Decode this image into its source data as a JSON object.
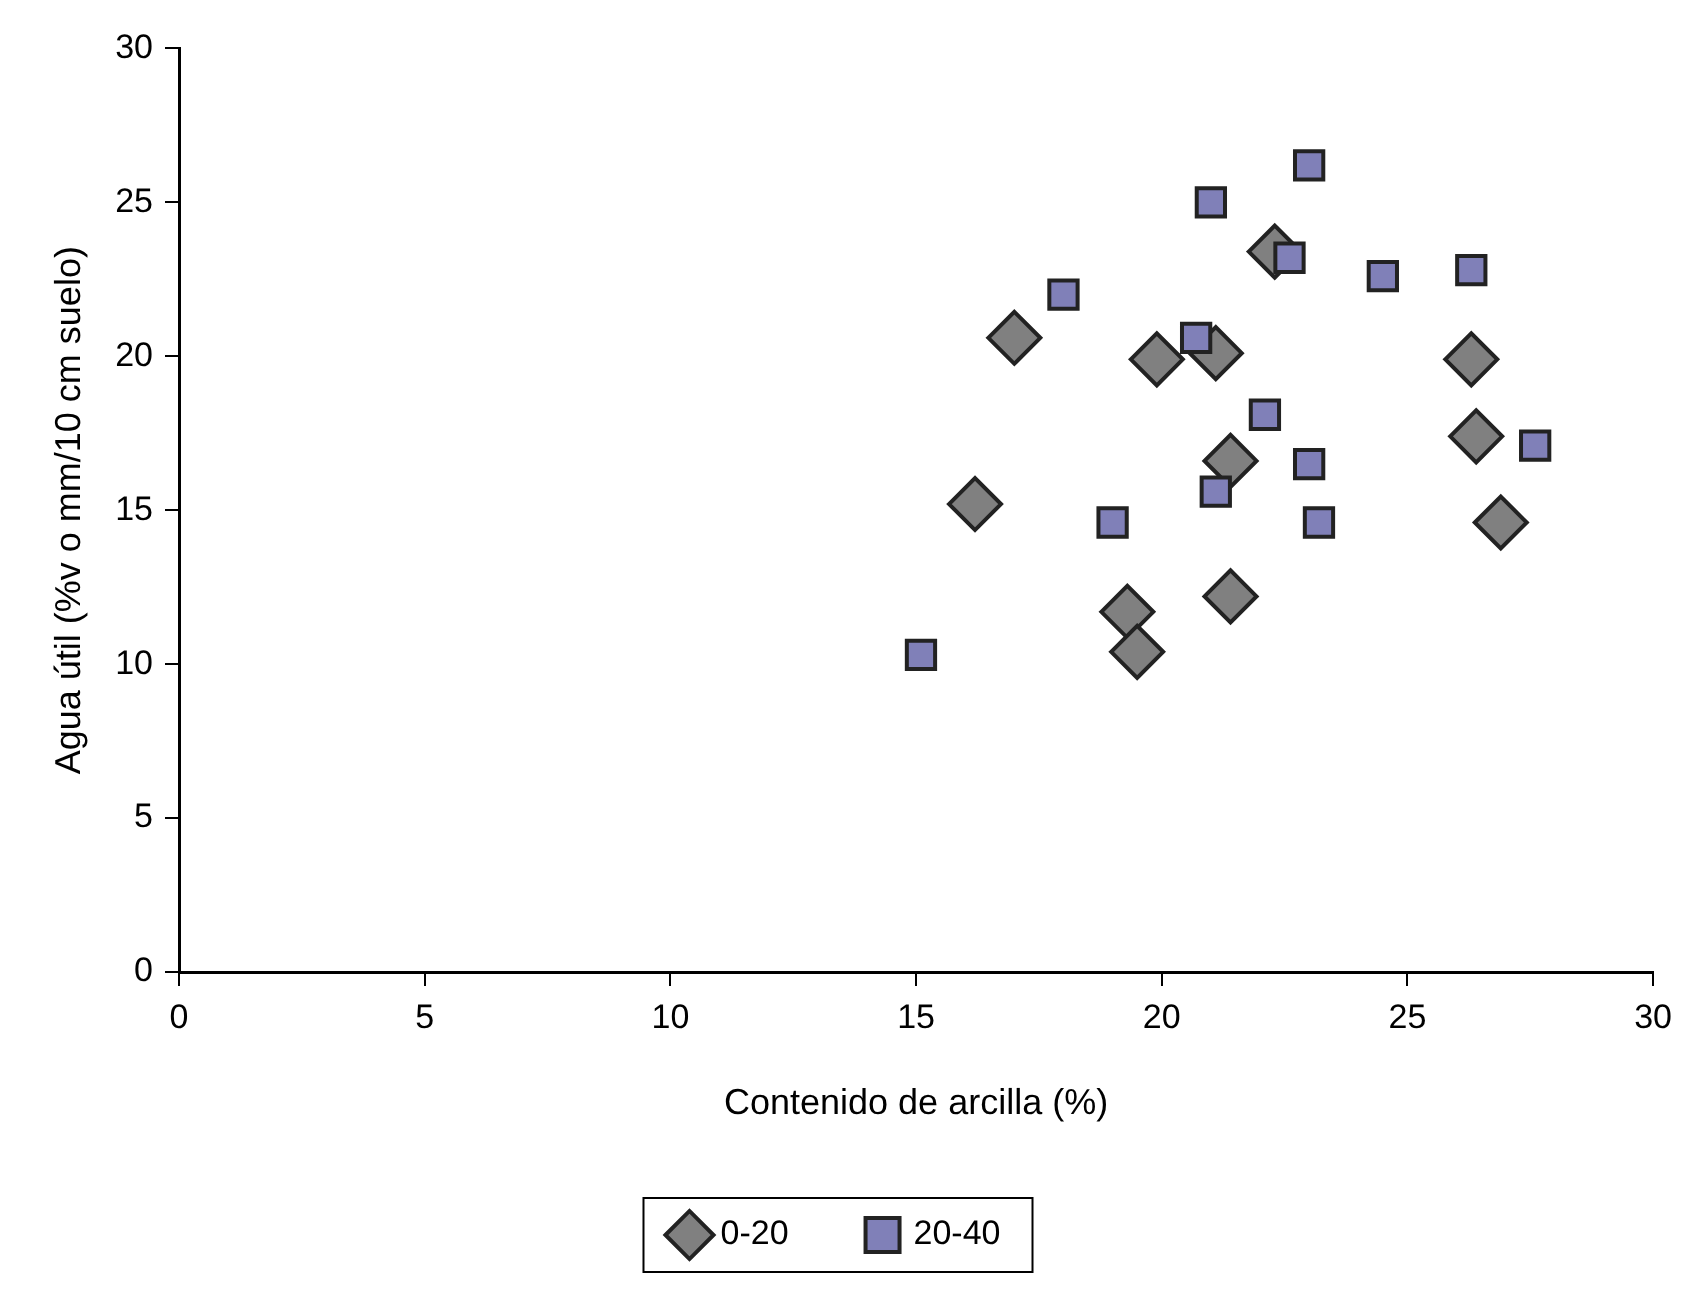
{
  "chart_data": {
    "type": "scatter",
    "xlabel": "Contenido de arcilla (%)",
    "ylabel": "Agua útil (%v o mm/10 cm suelo)",
    "xlim": [
      0,
      30
    ],
    "xticks": [
      0,
      5,
      10,
      15,
      20,
      25,
      30
    ],
    "ylim": [
      0,
      30
    ],
    "yticks": [
      0,
      5,
      10,
      15,
      20,
      25,
      30
    ],
    "legend": "bottom",
    "series": [
      {
        "name": "0-20",
        "color": "#808080",
        "marker": "diamond",
        "x": [
          17.0,
          19.9,
          21.1,
          22.3,
          26.3,
          26.4,
          26.9,
          21.4,
          16.2,
          19.3,
          19.5,
          21.4
        ],
        "values": [
          20.6,
          19.9,
          20.1,
          23.4,
          19.9,
          17.4,
          14.6,
          16.6,
          15.2,
          11.7,
          10.4,
          12.2
        ]
      },
      {
        "name": "20-40",
        "color": "#8080b8",
        "marker": "square",
        "x": [
          23.0,
          21.0,
          22.6,
          24.5,
          26.3,
          18.0,
          20.7,
          22.1,
          23.0,
          27.6,
          21.1,
          19.0,
          23.2,
          15.1
        ],
        "values": [
          26.2,
          25.0,
          23.2,
          22.6,
          22.8,
          22.0,
          20.6,
          18.1,
          16.5,
          17.1,
          15.6,
          14.6,
          14.6,
          10.3
        ]
      }
    ]
  }
}
